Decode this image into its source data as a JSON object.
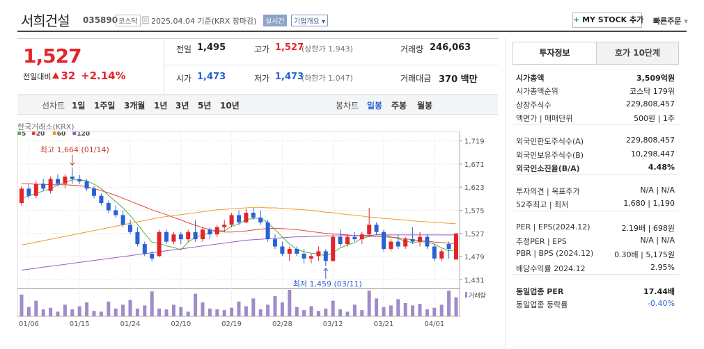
{
  "header": {
    "name": "서희건설",
    "code": "035890",
    "market": "코스닥",
    "date": "2025.04.04",
    "basis": "기준(KRX 장마감)",
    "realtime": "실시간",
    "overview": "기업개요",
    "my_stock": "MY STOCK 추가",
    "quick_order": "빠른주문"
  },
  "price": {
    "current": "1,527",
    "change_label": "전일대비",
    "change": "32",
    "rate": "+2.14%"
  },
  "summary": [
    [
      {
        "label": "전일",
        "value": "1,495"
      },
      {
        "label": "고가",
        "value": "1,527",
        "note": "(상한가 1,943)"
      },
      {
        "label": "거래량",
        "value": "246,063"
      }
    ],
    [
      {
        "label": "시가",
        "value": "1,473"
      },
      {
        "label": "저가",
        "value": "1,473",
        "note": "(하한가 1,047)"
      },
      {
        "label": "거래대금",
        "value": "370 백만"
      }
    ]
  ],
  "tabs": {
    "line": "선차트",
    "periods": [
      "1일",
      "1주일",
      "3개월",
      "1년",
      "3년",
      "5년",
      "10년"
    ],
    "candle": "봉차트",
    "candle_periods": [
      "일봉",
      "주봉",
      "월봉"
    ]
  },
  "chart_data": {
    "type": "candlestick",
    "source": "한국거래소(KRX)",
    "categories": [
      null,
      "01/06",
      null,
      null,
      null,
      null,
      null,
      null,
      "01/15",
      null,
      null,
      null,
      null,
      null,
      null,
      "01/24",
      null,
      null,
      null,
      null,
      null,
      null,
      "02/10",
      null,
      null,
      null,
      null,
      null,
      null,
      "02/19",
      null,
      null,
      null,
      null,
      null,
      null,
      "02/28",
      null,
      null,
      null,
      null,
      null,
      null,
      "03/12",
      null,
      null,
      null,
      null,
      null,
      null,
      "03/21",
      null,
      null,
      null,
      null,
      null,
      null,
      "04/01",
      null,
      null,
      null
    ],
    "open": [
      1590,
      1620,
      1605,
      1630,
      1615,
      1640,
      1630,
      1645,
      1640,
      1635,
      1620,
      1605,
      1590,
      1575,
      1565,
      1545,
      1530,
      1505,
      1485,
      1480,
      1530,
      1510,
      1525,
      1515,
      1530,
      1515,
      1535,
      1525,
      1540,
      1545,
      1565,
      1550,
      1570,
      1560,
      1550,
      1515,
      1500,
      1485,
      1495,
      1485,
      1475,
      1480,
      1490,
      1470,
      1520,
      1505,
      1520,
      1515,
      1525,
      1545,
      1530,
      1495,
      1510,
      1500,
      1515,
      1510,
      1520,
      1500,
      1475,
      1505,
      1473
    ],
    "high": [
      1625,
      1630,
      1635,
      1640,
      1645,
      1650,
      1650,
      1664,
      1648,
      1640,
      1625,
      1610,
      1595,
      1585,
      1575,
      1555,
      1540,
      1510,
      1490,
      1535,
      1535,
      1530,
      1530,
      1535,
      1555,
      1540,
      1540,
      1545,
      1555,
      1570,
      1575,
      1578,
      1580,
      1575,
      1555,
      1525,
      1510,
      1500,
      1500,
      1495,
      1485,
      1500,
      1495,
      1525,
      1535,
      1525,
      1530,
      1530,
      1580,
      1550,
      1535,
      1515,
      1525,
      1520,
      1540,
      1530,
      1525,
      1505,
      1495,
      1510,
      1527
    ],
    "low": [
      1585,
      1600,
      1600,
      1615,
      1610,
      1625,
      1620,
      1630,
      1630,
      1615,
      1600,
      1585,
      1570,
      1560,
      1540,
      1525,
      1500,
      1480,
      1470,
      1478,
      1505,
      1505,
      1505,
      1510,
      1510,
      1510,
      1515,
      1520,
      1530,
      1540,
      1545,
      1548,
      1555,
      1545,
      1510,
      1495,
      1480,
      1470,
      1480,
      1465,
      1465,
      1470,
      1459,
      1468,
      1500,
      1500,
      1510,
      1505,
      1520,
      1525,
      1490,
      1490,
      1495,
      1495,
      1505,
      1500,
      1495,
      1470,
      1470,
      1475,
      1473
    ],
    "close": [
      1620,
      1605,
      1630,
      1620,
      1640,
      1630,
      1645,
      1640,
      1635,
      1620,
      1605,
      1590,
      1575,
      1565,
      1545,
      1530,
      1505,
      1485,
      1475,
      1530,
      1510,
      1525,
      1515,
      1530,
      1515,
      1535,
      1525,
      1540,
      1545,
      1565,
      1550,
      1570,
      1560,
      1550,
      1515,
      1500,
      1485,
      1495,
      1485,
      1475,
      1480,
      1490,
      1470,
      1520,
      1505,
      1520,
      1515,
      1525,
      1545,
      1530,
      1495,
      1510,
      1500,
      1515,
      1510,
      1520,
      1500,
      1475,
      1490,
      1495,
      1527
    ],
    "colors": {
      "up": "#e3242b",
      "down": "#2a62d4"
    },
    "moving_averages": [
      {
        "name": "5",
        "color": "#55b04a",
        "values": [
          1600,
          1605,
          1610,
          1615,
          1620,
          1628,
          1633,
          1638,
          1638,
          1636,
          1629,
          1620,
          1606,
          1593,
          1580,
          1564,
          1546,
          1527,
          1509,
          1506,
          1501,
          1498,
          1493,
          1509,
          1519,
          1524,
          1528,
          1533,
          1532,
          1542,
          1546,
          1556,
          1558,
          1559,
          1549,
          1535,
          1520,
          1505,
          1494,
          1489,
          1486,
          1485,
          1480,
          1487,
          1497,
          1503,
          1508,
          1517,
          1521,
          1525,
          1524,
          1520,
          1516,
          1511,
          1508,
          1510,
          1509,
          1505,
          1497,
          1491,
          1493
        ]
      },
      {
        "name": "20",
        "color": "#e3453b",
        "values": [
          1630,
          1630,
          1629,
          1629,
          1628,
          1628,
          1628,
          1627,
          1626,
          1624,
          1620,
          1616,
          1611,
          1606,
          1600,
          1594,
          1588,
          1582,
          1576,
          1571,
          1566,
          1560,
          1555,
          1549,
          1544,
          1539,
          1535,
          1532,
          1530,
          1530,
          1531,
          1532,
          1534,
          1536,
          1537,
          1538,
          1537,
          1536,
          1535,
          1533,
          1531,
          1529,
          1527,
          1526,
          1525,
          1524,
          1523,
          1522,
          1521,
          1521,
          1520,
          1519,
          1518,
          1516,
          1514,
          1512,
          1511,
          1509,
          1508,
          1507,
          1506
        ]
      },
      {
        "name": "60",
        "color": "#f39a2d",
        "values": [
          1503,
          1506,
          1509,
          1512,
          1515,
          1518,
          1521,
          1524,
          1527,
          1530,
          1533,
          1536,
          1539,
          1542,
          1545,
          1548,
          1551,
          1554,
          1557,
          1560,
          1562,
          1564,
          1566,
          1568,
          1570,
          1572,
          1574,
          1576,
          1577,
          1578,
          1579,
          1580,
          1581,
          1581,
          1580,
          1580,
          1579,
          1578,
          1577,
          1576,
          1575,
          1573,
          1571,
          1570,
          1568,
          1566,
          1565,
          1563,
          1561,
          1560,
          1558,
          1557,
          1556,
          1555,
          1553,
          1552,
          1551,
          1550,
          1549,
          1548,
          1547
        ]
      },
      {
        "name": "120",
        "color": "#9b5cc4",
        "values": [
          1451,
          1453,
          1455,
          1457,
          1459,
          1461,
          1463,
          1465,
          1467,
          1469,
          1471,
          1473,
          1475,
          1477,
          1479,
          1481,
          1483,
          1485,
          1487,
          1489,
          1491,
          1493,
          1495,
          1497,
          1499,
          1501,
          1503,
          1505,
          1507,
          1509,
          1511,
          1513,
          1514,
          1515,
          1516,
          1517,
          1518,
          1519,
          1520,
          1520,
          1521,
          1521,
          1522,
          1522,
          1522,
          1523,
          1523,
          1523,
          1523,
          1524,
          1524,
          1524,
          1524,
          1524,
          1524,
          1524,
          1524,
          1524,
          1524,
          1524,
          1524
        ]
      }
    ],
    "volume": {
      "name": "거래량",
      "color": "#a08bc9",
      "values": [
        280000,
        120000,
        200000,
        90000,
        110000,
        60000,
        150000,
        90000,
        130000,
        180000,
        70000,
        60000,
        190000,
        100000,
        150000,
        210000,
        100000,
        140000,
        320000,
        100000,
        90000,
        150000,
        120000,
        60000,
        290000,
        180000,
        100000,
        90000,
        80000,
        110000,
        190000,
        130000,
        230000,
        90000,
        150000,
        260000,
        180000,
        340000,
        120000,
        80000,
        130000,
        70000,
        100000,
        200000,
        90000,
        60000,
        150000,
        80000,
        330000,
        230000,
        120000,
        140000,
        220000,
        170000,
        140000,
        160000,
        90000,
        110000,
        150000,
        330000,
        246063
      ]
    },
    "ylim": [
      1420,
      1730
    ],
    "yticks": [
      {
        "value": 1431,
        "label": "1,431"
      },
      {
        "value": 1479,
        "label": "1,479"
      },
      {
        "value": 1527,
        "label": "1,527"
      },
      {
        "value": 1575,
        "label": "1,575"
      },
      {
        "value": 1623,
        "label": "1,623"
      },
      {
        "value": 1671,
        "label": "1,671"
      },
      {
        "value": 1719,
        "label": "1,719"
      }
    ],
    "annotations": [
      {
        "text": "최고 1,664 (01/14)",
        "value": 1664,
        "kind": "high"
      },
      {
        "text": "최저 1,459 (03/11)",
        "value": 1459,
        "kind": "low"
      }
    ],
    "grid": true
  },
  "info": {
    "tabs": [
      "투자정보",
      "호가 10단계"
    ],
    "sections": [
      [
        {
          "label": "시가총액",
          "value": "3,509억원"
        },
        {
          "label": "시가총액순위",
          "value": "코스닥 179위"
        },
        {
          "label": "상장주식수",
          "value": "229,808,457"
        },
        {
          "label": "액면가 | 매매단위",
          "value": "500원 | 1주"
        }
      ],
      [
        {
          "label": "외국인한도주식수(A)",
          "value": "229,808,457"
        },
        {
          "label": "외국인보유주식수(B)",
          "value": "10,298,447"
        },
        {
          "label": "외국인소진율(B/A)",
          "value": "4.48%"
        }
      ],
      [
        {
          "label": "투자의견 | 목표주가",
          "value": "N/A | N/A"
        },
        {
          "label": "52주최고 | 최저",
          "value": "1,680 | 1,190"
        }
      ],
      [
        {
          "label": "PER | EPS(2024.12)",
          "value": "2.19배 | 698원"
        },
        {
          "label": "추정PER | EPS",
          "value": "N/A | N/A"
        },
        {
          "label": "PBR | BPS (2024.12)",
          "value": "0.30배 | 5,175원"
        },
        {
          "label": "배당수익률 2024.12",
          "value": "2.95%"
        }
      ],
      [
        {
          "label": "동일업종 PER",
          "value": "17.44배"
        },
        {
          "label": "동일업종 등락률",
          "value": "-0.40%"
        }
      ]
    ]
  }
}
